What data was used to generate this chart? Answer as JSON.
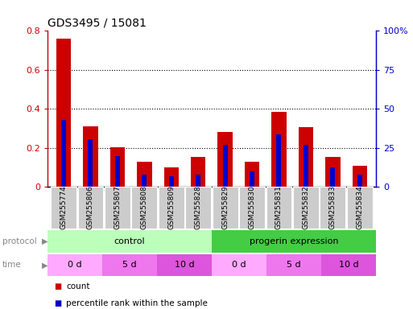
{
  "title": "GDS3495 / 15081",
  "samples": [
    "GSM255774",
    "GSM255806",
    "GSM255807",
    "GSM255808",
    "GSM255809",
    "GSM255828",
    "GSM255829",
    "GSM255830",
    "GSM255831",
    "GSM255832",
    "GSM255833",
    "GSM255834"
  ],
  "red_values": [
    0.76,
    0.31,
    0.205,
    0.13,
    0.1,
    0.155,
    0.28,
    0.13,
    0.385,
    0.305,
    0.155,
    0.11
  ],
  "blue_values": [
    0.345,
    0.245,
    0.16,
    0.065,
    0.055,
    0.065,
    0.215,
    0.08,
    0.27,
    0.215,
    0.1,
    0.065
  ],
  "ylim_left": [
    0,
    0.8
  ],
  "ylim_right": [
    0,
    100
  ],
  "yticks_left": [
    0,
    0.2,
    0.4,
    0.6,
    0.8
  ],
  "yticks_right": [
    0,
    25,
    50,
    75,
    100
  ],
  "ytick_labels_left": [
    "0",
    "0.2",
    "0.4",
    "0.6",
    "0.8"
  ],
  "ytick_labels_right": [
    "0",
    "25",
    "50",
    "75",
    "100%"
  ],
  "red_color": "#cc0000",
  "blue_color": "#0000cc",
  "red_bar_width": 0.55,
  "blue_bar_width": 0.18,
  "protocol_row": {
    "groups": [
      {
        "label": "control",
        "start": 0,
        "end": 6,
        "color": "#bbffbb"
      },
      {
        "label": "progerin expression",
        "start": 6,
        "end": 12,
        "color": "#44cc44"
      }
    ]
  },
  "time_row": {
    "groups": [
      {
        "label": "0 d",
        "start": 0,
        "end": 2,
        "color": "#ffaaff"
      },
      {
        "label": "5 d",
        "start": 2,
        "end": 4,
        "color": "#ee77ee"
      },
      {
        "label": "10 d",
        "start": 4,
        "end": 6,
        "color": "#dd55dd"
      },
      {
        "label": "0 d",
        "start": 6,
        "end": 8,
        "color": "#ffaaff"
      },
      {
        "label": "5 d",
        "start": 8,
        "end": 10,
        "color": "#ee77ee"
      },
      {
        "label": "10 d",
        "start": 10,
        "end": 12,
        "color": "#dd55dd"
      }
    ]
  },
  "legend_items": [
    {
      "label": "count",
      "color": "#cc0000"
    },
    {
      "label": "percentile rank within the sample",
      "color": "#0000cc"
    }
  ],
  "tick_color_left": "#cc0000",
  "tick_color_right": "#0000cc",
  "bg_color": "#ffffff",
  "sample_bg_color": "#cccccc",
  "label_color": "#888888"
}
